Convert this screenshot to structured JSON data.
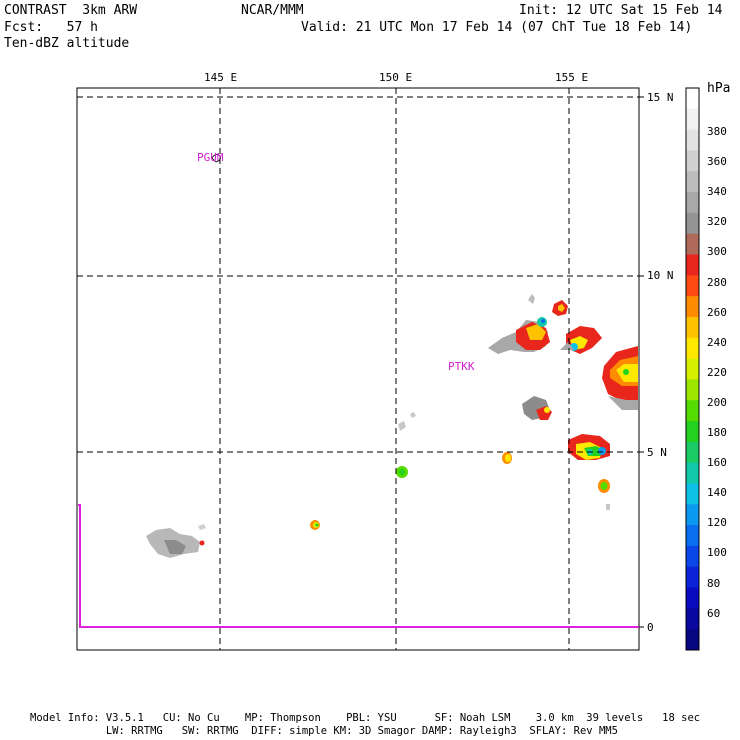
{
  "header": {
    "model": "CONTRAST  3km ARW",
    "forecast": "Fcst:   57 h",
    "field": "Ten-dBZ altitude",
    "center": "NCAR/MMM",
    "init": "Init: 12 UTC Sat 15 Feb 14",
    "valid": "Valid: 21 UTC Mon 17 Feb 14 (07 ChT Tue 18 Feb 14)"
  },
  "map": {
    "lon_labels": [
      "145 E",
      "150 E",
      "155 E"
    ],
    "lat_labels": [
      "15 N",
      "10 N",
      "5 N",
      "0"
    ],
    "stations": [
      "PGUM",
      "PTKK"
    ]
  },
  "colorbar": {
    "unit": "hPa",
    "labels": [
      "380",
      "360",
      "340",
      "320",
      "300",
      "280",
      "260",
      "240",
      "220",
      "200",
      "180",
      "160",
      "140",
      "120",
      "100",
      "80",
      "60"
    ],
    "colors": [
      "#ffffff",
      "#f2f2f2",
      "#e2e2e2",
      "#d0d0d0",
      "#bcbcbc",
      "#a8a8a8",
      "#949494",
      "#b06a5a",
      "#e8261c",
      "#ff4a14",
      "#ff8c00",
      "#ffc200",
      "#ffe800",
      "#d6f000",
      "#9ce600",
      "#55dc00",
      "#22d21e",
      "#1acc66",
      "#12c8aa",
      "#0cc0e6",
      "#0a98f0",
      "#0a6ef0",
      "#0a46e8",
      "#0a22d8",
      "#0a0abe",
      "#0808a0",
      "#060680"
    ]
  },
  "footer": {
    "line1": "Model Info: V3.5.1   CU: No Cu    MP: Thompson    PBL: YSU      SF: Noah LSM    3.0 km  39 levels   18 sec",
    "line2": "            LW: RRTMG   SW: RRTMG  DIFF: simple KM: 3D Smagor DAMP: Rayleigh3  SFLAY: Rev MM5"
  }
}
